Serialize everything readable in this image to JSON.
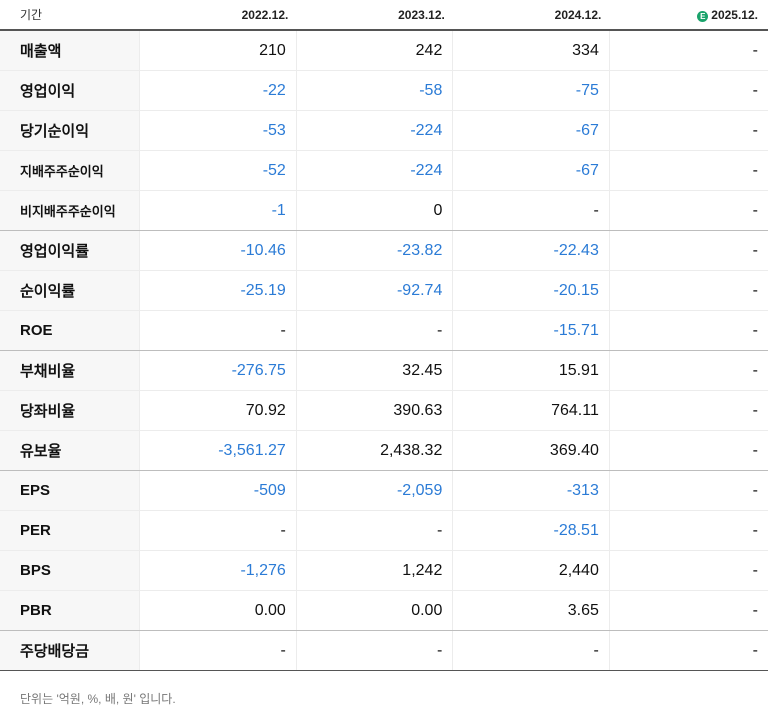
{
  "table": {
    "header": {
      "label": "기간",
      "periods": [
        "2022.12.",
        "2023.12.",
        "2024.12.",
        "2025.12."
      ],
      "estimate_badge": "E",
      "estimate_badge_color": "#1aa36b"
    },
    "rows": [
      {
        "label": "매출액",
        "values": [
          "210",
          "242",
          "334",
          "-"
        ],
        "neg": [
          false,
          false,
          false,
          false
        ],
        "small": false,
        "sep": false
      },
      {
        "label": "영업이익",
        "values": [
          "-22",
          "-58",
          "-75",
          "-"
        ],
        "neg": [
          true,
          true,
          true,
          false
        ],
        "small": false,
        "sep": false
      },
      {
        "label": "당기순이익",
        "values": [
          "-53",
          "-224",
          "-67",
          "-"
        ],
        "neg": [
          true,
          true,
          true,
          false
        ],
        "small": false,
        "sep": false
      },
      {
        "label": "지배주주순이익",
        "values": [
          "-52",
          "-224",
          "-67",
          "-"
        ],
        "neg": [
          true,
          true,
          true,
          false
        ],
        "small": true,
        "sep": false
      },
      {
        "label": "비지배주주순이익",
        "values": [
          "-1",
          "0",
          "-",
          "-"
        ],
        "neg": [
          true,
          false,
          false,
          false
        ],
        "small": true,
        "sep": true
      },
      {
        "label": "영업이익률",
        "values": [
          "-10.46",
          "-23.82",
          "-22.43",
          "-"
        ],
        "neg": [
          true,
          true,
          true,
          false
        ],
        "small": false,
        "sep": false
      },
      {
        "label": "순이익률",
        "values": [
          "-25.19",
          "-92.74",
          "-20.15",
          "-"
        ],
        "neg": [
          true,
          true,
          true,
          false
        ],
        "small": false,
        "sep": false
      },
      {
        "label": "ROE",
        "values": [
          "-",
          "-",
          "-15.71",
          "-"
        ],
        "neg": [
          false,
          false,
          true,
          false
        ],
        "small": false,
        "sep": true
      },
      {
        "label": "부채비율",
        "values": [
          "-276.75",
          "32.45",
          "15.91",
          "-"
        ],
        "neg": [
          true,
          false,
          false,
          false
        ],
        "small": false,
        "sep": false
      },
      {
        "label": "당좌비율",
        "values": [
          "70.92",
          "390.63",
          "764.11",
          "-"
        ],
        "neg": [
          false,
          false,
          false,
          false
        ],
        "small": false,
        "sep": false
      },
      {
        "label": "유보율",
        "values": [
          "-3,561.27",
          "2,438.32",
          "369.40",
          "-"
        ],
        "neg": [
          true,
          false,
          false,
          false
        ],
        "small": false,
        "sep": true
      },
      {
        "label": "EPS",
        "values": [
          "-509",
          "-2,059",
          "-313",
          "-"
        ],
        "neg": [
          true,
          true,
          true,
          false
        ],
        "small": false,
        "sep": false
      },
      {
        "label": "PER",
        "values": [
          "-",
          "-",
          "-28.51",
          "-"
        ],
        "neg": [
          false,
          false,
          true,
          false
        ],
        "small": false,
        "sep": false
      },
      {
        "label": "BPS",
        "values": [
          "-1,276",
          "1,242",
          "2,440",
          "-"
        ],
        "neg": [
          true,
          false,
          false,
          false
        ],
        "small": false,
        "sep": false
      },
      {
        "label": "PBR",
        "values": [
          "0.00",
          "0.00",
          "3.65",
          "-"
        ],
        "neg": [
          false,
          false,
          false,
          false
        ],
        "small": false,
        "sep": true
      },
      {
        "label": "주당배당금",
        "values": [
          "-",
          "-",
          "-",
          "-"
        ],
        "neg": [
          false,
          false,
          false,
          false
        ],
        "small": false,
        "sep": false
      }
    ]
  },
  "note": "단위는 '억원, %, 배, 원' 입니다.",
  "colors": {
    "negative": "#2b7bd6",
    "positive": "#111111",
    "label_bg": "#f7f7f7"
  }
}
